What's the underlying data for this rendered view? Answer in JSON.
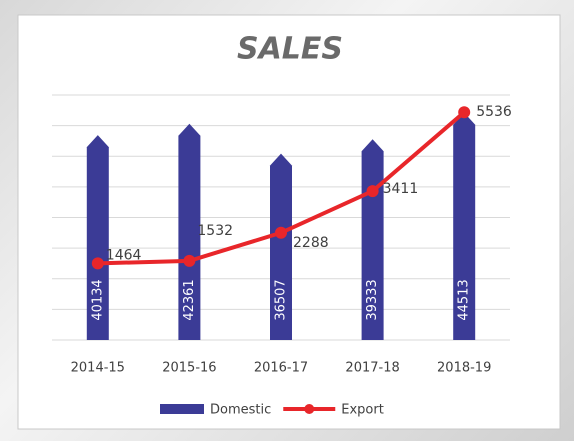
{
  "chart_data": {
    "type": "bar_line",
    "title": "SALES",
    "categories": [
      "2014-15",
      "2015-16",
      "2016-17",
      "2017-18",
      "2018-19"
    ],
    "series": [
      {
        "name": "Domestic",
        "type": "bar",
        "color": "#3b3b96",
        "values": [
          40134,
          42361,
          36507,
          39333,
          44513
        ]
      },
      {
        "name": "Export",
        "type": "line",
        "color": "#e8262a",
        "axis": "y2",
        "values": [
          1464,
          1532,
          2288,
          3411,
          5536
        ]
      }
    ],
    "ylim": [
      0,
      48000
    ],
    "yticks": [
      0,
      6000,
      12000,
      18000,
      24000,
      30000,
      36000,
      42000,
      48000
    ],
    "y2lim": [
      -600,
      6000
    ],
    "grid": true,
    "legend": "bottom"
  }
}
